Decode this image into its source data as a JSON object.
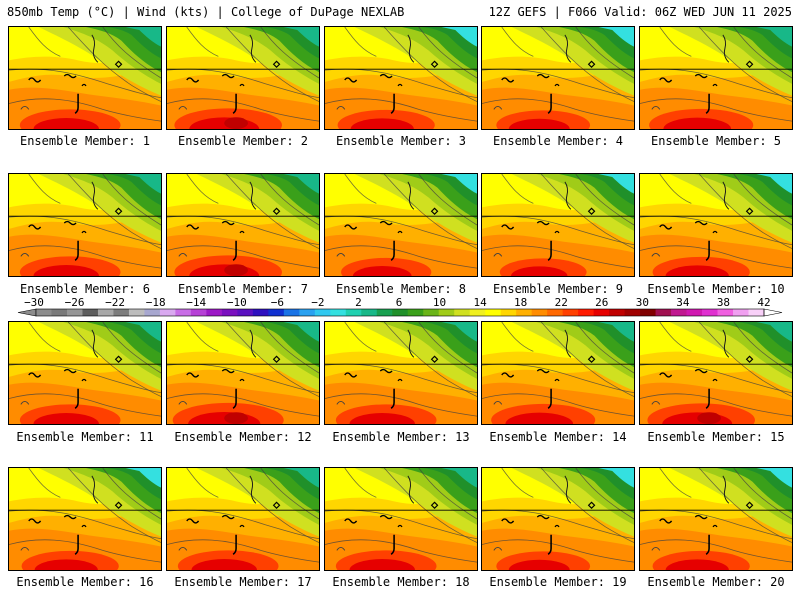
{
  "header": {
    "left": "850mb Temp (°C) | Wind (kts) | College of DuPage NEXLAB",
    "right": "12Z GEFS | F066 Valid: 06Z WED JUN 11 2025"
  },
  "members": [
    {
      "label": "Ensemble Member: 1",
      "warmth": 0.6
    },
    {
      "label": "Ensemble Member: 2",
      "warmth": 0.7
    },
    {
      "label": "Ensemble Member: 3",
      "warmth": 0.55
    },
    {
      "label": "Ensemble Member: 4",
      "warmth": 0.5
    },
    {
      "label": "Ensemble Member: 5",
      "warmth": 0.65
    },
    {
      "label": "Ensemble Member: 6",
      "warmth": 0.6
    },
    {
      "label": "Ensemble Member: 7",
      "warmth": 0.7
    },
    {
      "label": "Ensemble Member: 8",
      "warmth": 0.45
    },
    {
      "label": "Ensemble Member: 9",
      "warmth": 0.4
    },
    {
      "label": "Ensemble Member: 10",
      "warmth": 0.55
    },
    {
      "label": "Ensemble Member: 11",
      "warmth": 0.6
    },
    {
      "label": "Ensemble Member: 12",
      "warmth": 0.75
    },
    {
      "label": "Ensemble Member: 13",
      "warmth": 0.6
    },
    {
      "label": "Ensemble Member: 14",
      "warmth": 0.65
    },
    {
      "label": "Ensemble Member: 15",
      "warmth": 0.7
    },
    {
      "label": "Ensemble Member: 16",
      "warmth": 0.55
    },
    {
      "label": "Ensemble Member: 17",
      "warmth": 0.6
    },
    {
      "label": "Ensemble Member: 18",
      "warmth": 0.6
    },
    {
      "label": "Ensemble Member: 19",
      "warmth": 0.5
    },
    {
      "label": "Ensemble Member: 20",
      "warmth": 0.55
    }
  ],
  "colorbar": {
    "ticks": [
      "-30",
      "-26",
      "-22",
      "-18",
      "-14",
      "-10",
      "-6",
      "-2",
      "2",
      "6",
      "10",
      "14",
      "18",
      "22",
      "26",
      "30",
      "34",
      "38",
      "42"
    ],
    "colors": [
      "#8c8c8c",
      "#7a7a7a",
      "#969696",
      "#5e5e5e",
      "#a8a8a8",
      "#7d7d7d",
      "#bcbcbc",
      "#a7a7cf",
      "#d9a9f0",
      "#c86de6",
      "#b641d6",
      "#9c19c6",
      "#7a10bf",
      "#5a10c0",
      "#2e10bf",
      "#1030d0",
      "#1a73e6",
      "#2aa1f0",
      "#30c8f0",
      "#34e0e0",
      "#20d0b0",
      "#18b888",
      "#18a050",
      "#20902a",
      "#3aa01a",
      "#6ab418",
      "#a0cc18",
      "#d0e020",
      "#f0f020",
      "#ffff00",
      "#ffd600",
      "#ffb000",
      "#ff8c00",
      "#ff6800",
      "#ff4000",
      "#ff1a00",
      "#e60000",
      "#c00000",
      "#a00000",
      "#800000",
      "#a01050",
      "#c01890",
      "#d018b0",
      "#e030d0",
      "#f060e0",
      "#f0a0f0",
      "#f8d0f8"
    ]
  }
}
